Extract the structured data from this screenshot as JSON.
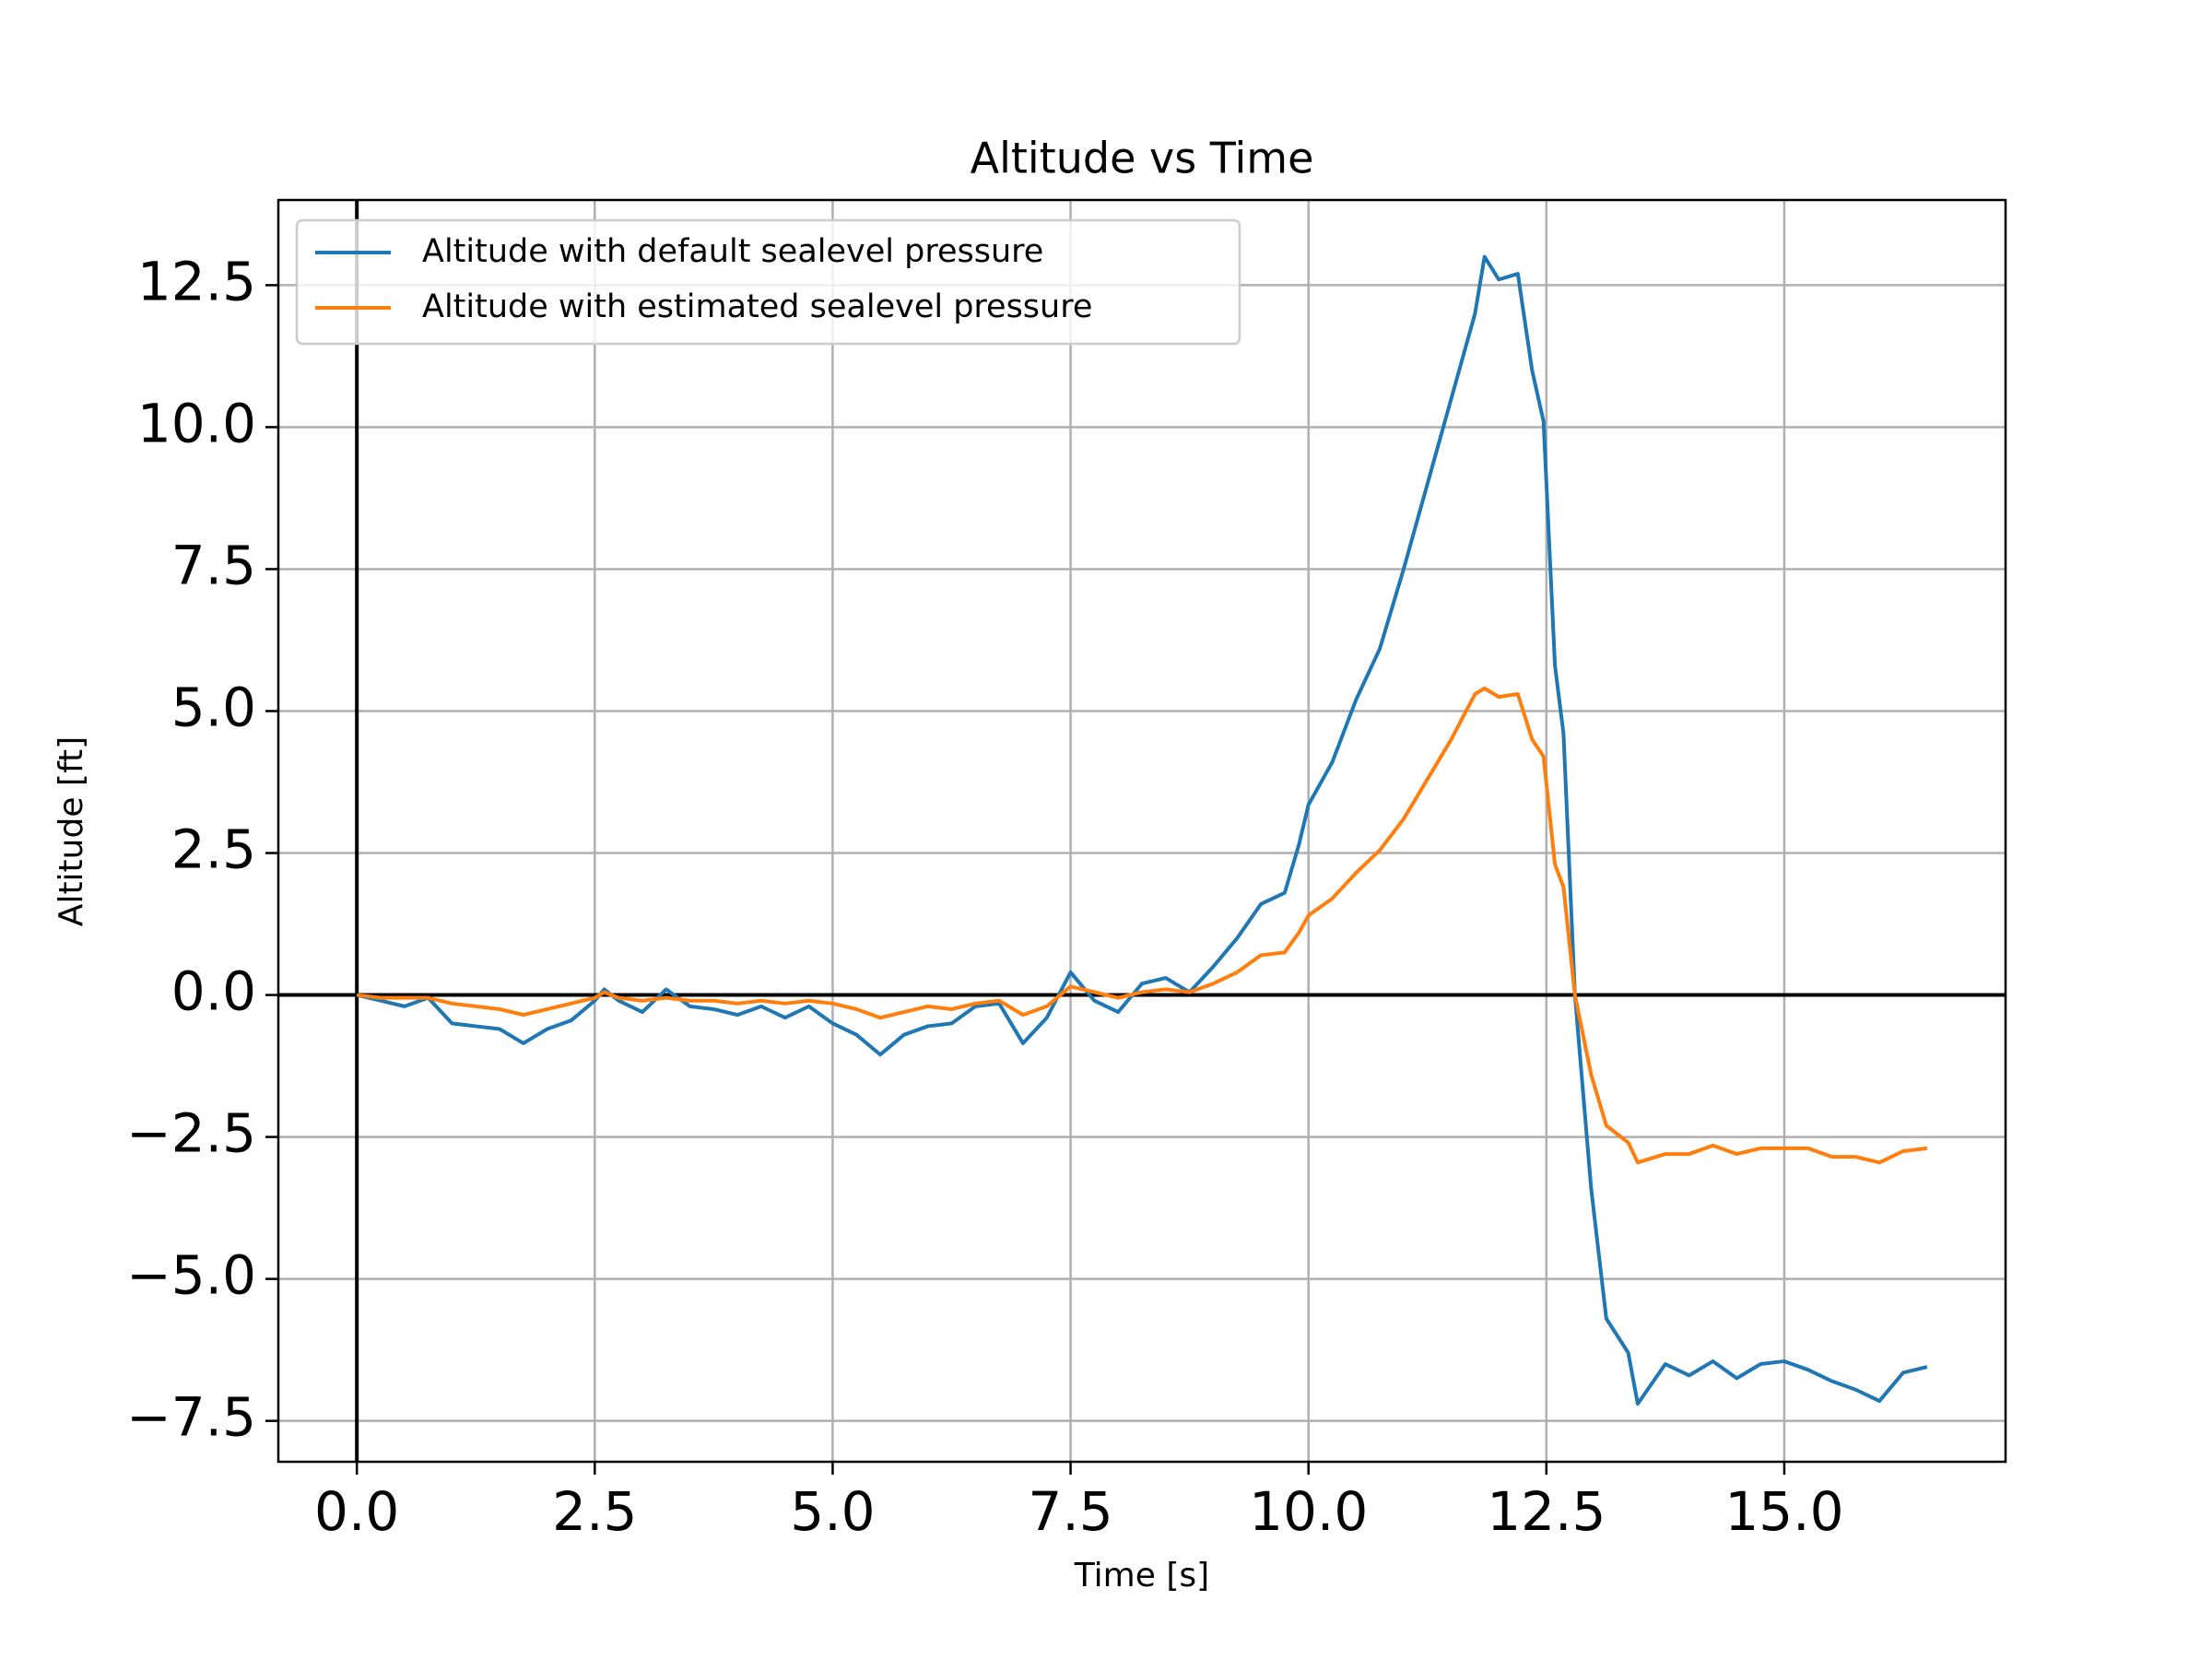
{
  "chart_data": {
    "type": "line",
    "title": "Altitude vs Time",
    "x_label": "Time [s]",
    "y_label": "Altitude [ft]",
    "x": [
      0,
      0.25,
      0.5,
      0.75,
      1,
      1.25,
      1.5,
      1.75,
      2,
      2.25,
      2.5,
      2.6,
      2.75,
      3,
      3.25,
      3.5,
      3.75,
      4,
      4.25,
      4.5,
      4.75,
      5,
      5.25,
      5.5,
      5.75,
      6,
      6.25,
      6.5,
      6.75,
      7,
      7.25,
      7.5,
      7.75,
      8,
      8.25,
      8.5,
      8.75,
      9,
      9.25,
      9.5,
      9.75,
      9.9,
      10,
      10.25,
      10.5,
      10.75,
      11,
      11.25,
      11.5,
      11.75,
      11.85,
      12,
      12.2,
      12.35,
      12.47,
      12.59,
      12.68,
      12.8,
      12.97,
      13.13,
      13.36,
      13.46,
      13.75,
      14,
      14.25,
      14.5,
      14.75,
      15,
      15.25,
      15.5,
      15.75,
      16,
      16.25,
      16.5
    ],
    "series": [
      {
        "name": "Altitude with default sealevel pressure",
        "color": "#1f77b4",
        "values": [
          0,
          -0.1,
          -0.2,
          -0.05,
          -0.5,
          -0.55,
          -0.6,
          -0.85,
          -0.6,
          -0.45,
          -0.1,
          0.1,
          -0.1,
          -0.3,
          0.1,
          -0.2,
          -0.25,
          -0.35,
          -0.2,
          -0.4,
          -0.2,
          -0.5,
          -0.7,
          -1.05,
          -0.7,
          -0.55,
          -0.5,
          -0.2,
          -0.15,
          -0.85,
          -0.4,
          0.4,
          -0.1,
          -0.3,
          0.2,
          0.3,
          0.05,
          0.5,
          1.0,
          1.6,
          1.8,
          2.65,
          3.35,
          4.1,
          5.2,
          6.1,
          7.5,
          9.0,
          10.5,
          12.0,
          13.0,
          12.6,
          12.7,
          11.0,
          10.1,
          5.8,
          4.6,
          0.0,
          -3.4,
          -5.7,
          -6.3,
          -7.2,
          -6.5,
          -6.7,
          -6.45,
          -6.75,
          -6.5,
          -6.45,
          -6.6,
          -6.8,
          -6.95,
          -7.15,
          -6.65,
          -6.55
        ]
      },
      {
        "name": "Altitude with estimated sealevel pressure",
        "color": "#ff7f0e",
        "values": [
          0,
          -0.05,
          -0.05,
          -0.05,
          -0.15,
          -0.2,
          -0.25,
          -0.35,
          -0.25,
          -0.15,
          -0.05,
          0.05,
          -0.05,
          -0.1,
          -0.05,
          -0.1,
          -0.1,
          -0.15,
          -0.1,
          -0.15,
          -0.1,
          -0.15,
          -0.25,
          -0.4,
          -0.3,
          -0.2,
          -0.25,
          -0.15,
          -0.1,
          -0.35,
          -0.2,
          0.15,
          0.05,
          -0.05,
          0.05,
          0.1,
          0.05,
          0.2,
          0.4,
          0.7,
          0.75,
          1.1,
          1.4,
          1.7,
          2.15,
          2.55,
          3.1,
          3.8,
          4.5,
          5.3,
          5.4,
          5.25,
          5.3,
          4.5,
          4.2,
          2.3,
          1.9,
          0.0,
          -1.4,
          -2.3,
          -2.6,
          -2.95,
          -2.8,
          -2.8,
          -2.65,
          -2.8,
          -2.7,
          -2.7,
          -2.7,
          -2.85,
          -2.85,
          -2.95,
          -2.75,
          -2.7
        ]
      }
    ],
    "xlim": [
      -0.825,
      17.325
    ],
    "xticks": [
      {
        "value": 0,
        "label": "0.0"
      },
      2.5,
      {
        "value": 5,
        "label": "5.0"
      },
      7.5,
      {
        "value": 10,
        "label": "10.0"
      },
      12.5,
      {
        "value": 15,
        "label": "15.0"
      }
    ],
    "ylim": [
      -8.22,
      14.0
    ],
    "yticks": [
      {
        "value": -7.5,
        "label": "−7.5"
      },
      {
        "value": -5,
        "label": "−5.0"
      },
      {
        "value": -2.5,
        "label": "−2.5"
      },
      {
        "value": 0,
        "label": "0.0"
      },
      2.5,
      {
        "value": 5,
        "label": "5.0"
      },
      7.5,
      {
        "value": 10,
        "label": "10.0"
      },
      12.5
    ],
    "grid": true,
    "zero_lines": true,
    "legend": "upper left"
  }
}
